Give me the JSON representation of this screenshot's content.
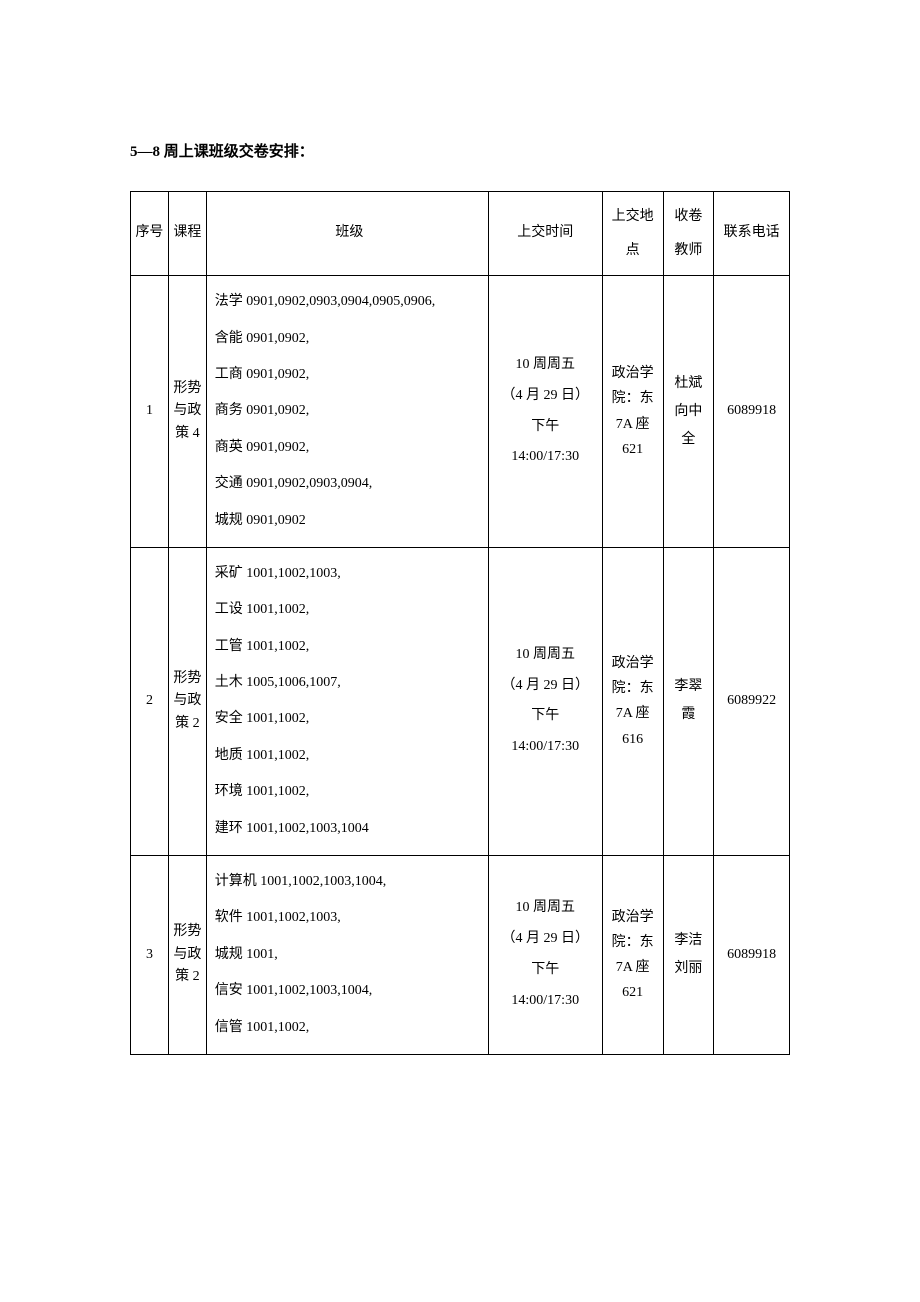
{
  "title": "5—8 周上课班级交卷安排：",
  "headers": {
    "seq": "序号",
    "course": "课程",
    "class": "班级",
    "time": "上交时间",
    "location": "上交地点",
    "teacher": "收卷教师",
    "phone": "联系电话"
  },
  "rows": [
    {
      "seq": "1",
      "course": "形势与政策 4",
      "class": "法学 0901,0902,0903,0904,0905,0906,\n含能 0901,0902,\n工商 0901,0902,\n商务 0901,0902,\n商英 0901,0902,\n交通 0901,0902,0903,0904,\n城规 0901,0902",
      "time": "10 周周五\n（4 月 29 日）\n下午\n14:00/17:30",
      "location": "政治学院：东 7A 座 621",
      "teacher": "杜斌\n向中全",
      "phone": "6089918"
    },
    {
      "seq": "2",
      "course": "形势与政策 2",
      "class": "采矿 1001,1002,1003,\n工设 1001,1002,\n工管 1001,1002,\n土木 1005,1006,1007,\n安全 1001,1002,\n地质 1001,1002,\n环境 1001,1002,\n建环 1001,1002,1003,1004",
      "time": "10 周周五\n（4 月 29 日）\n下午\n14:00/17:30",
      "location": "政治学院：东 7A 座 616",
      "teacher": "李翠霞",
      "phone": "6089922"
    },
    {
      "seq": "3",
      "course": "形势与政策 2",
      "class": "计算机 1001,1002,1003,1004,\n软件 1001,1002,1003,\n城规 1001,\n信安 1001,1002,1003,1004,\n信管 1001,1002,",
      "time": "10 周周五\n（4 月 29 日）\n下午\n14:00/17:30",
      "location": "政治学院：东 7A 座 621",
      "teacher": "李洁\n刘丽",
      "phone": "6089918"
    }
  ]
}
